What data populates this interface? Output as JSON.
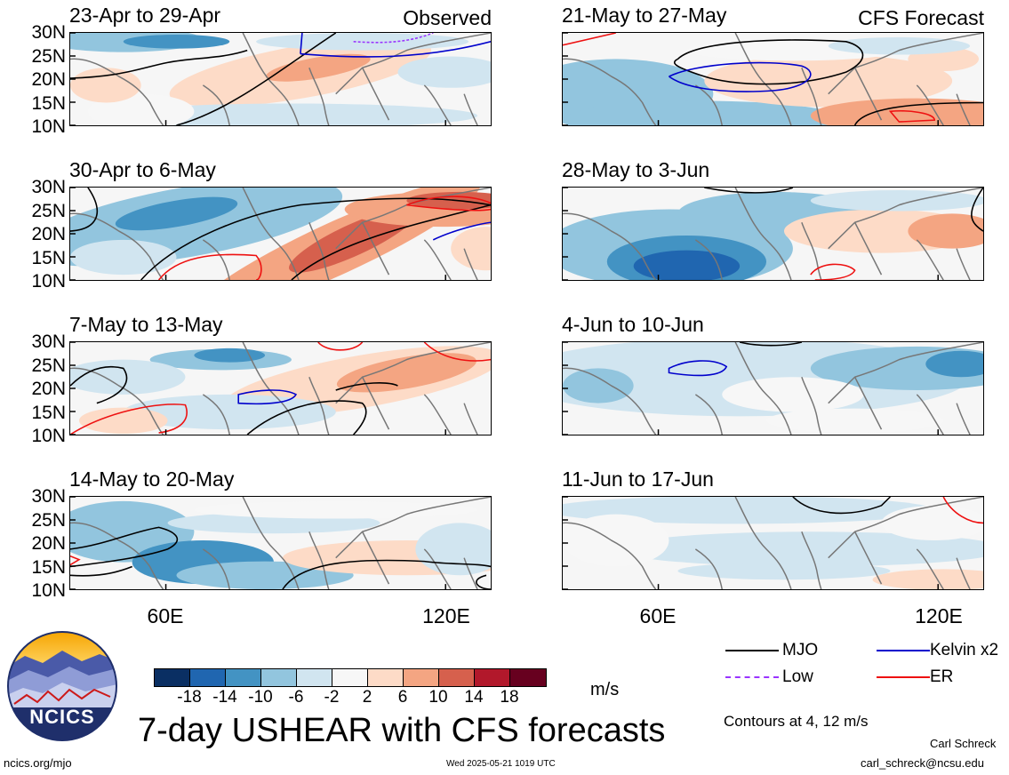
{
  "panels": [
    {
      "id": "p1",
      "title": "23-Apr to 29-Apr",
      "tag": "Observed"
    },
    {
      "id": "p2",
      "title": "21-May to 27-May",
      "tag": "CFS Forecast"
    },
    {
      "id": "p3",
      "title": "30-Apr to 6-May",
      "tag": ""
    },
    {
      "id": "p4",
      "title": "28-May to 3-Jun",
      "tag": ""
    },
    {
      "id": "p5",
      "title": "7-May to 13-May",
      "tag": ""
    },
    {
      "id": "p6",
      "title": "4-Jun to 10-Jun",
      "tag": ""
    },
    {
      "id": "p7",
      "title": "14-May to 20-May",
      "tag": ""
    },
    {
      "id": "p8",
      "title": "11-Jun to 17-Jun",
      "tag": ""
    }
  ],
  "lat_labels": [
    "30N",
    "25N",
    "20N",
    "15N",
    "10N"
  ],
  "lon_labels": [
    "60E",
    "120E"
  ],
  "colorbar": {
    "colors": [
      "#0a2f63",
      "#2066b0",
      "#4393c3",
      "#92c5de",
      "#d1e5f0",
      "#f7f7f7",
      "#fddbc7",
      "#f4a582",
      "#d6604d",
      "#b2182b",
      "#67001f"
    ],
    "labels": [
      "-18",
      "-14",
      "-10",
      "-6",
      "-2",
      "2",
      "6",
      "10",
      "14",
      "18"
    ],
    "units": "m/s"
  },
  "legend": {
    "items": [
      {
        "label": "MJO",
        "color": "#000000"
      },
      {
        "label": "Kelvin x2",
        "color": "#0000cc"
      },
      {
        "label": "Low",
        "color": "#9933ff"
      },
      {
        "label": "ER",
        "color": "#ee1111"
      }
    ],
    "contours_note": "Contours at 4, 12 m/s"
  },
  "main_title": "7-day USHEAR with CFS forecasts",
  "logo_text": "NCICS",
  "footer": {
    "left": "ncics.org/mjo",
    "center": "Wed 2025-05-21 1019 UTC",
    "author": "Carl Schreck",
    "email": "carl_schreck@ncsu.edu"
  }
}
